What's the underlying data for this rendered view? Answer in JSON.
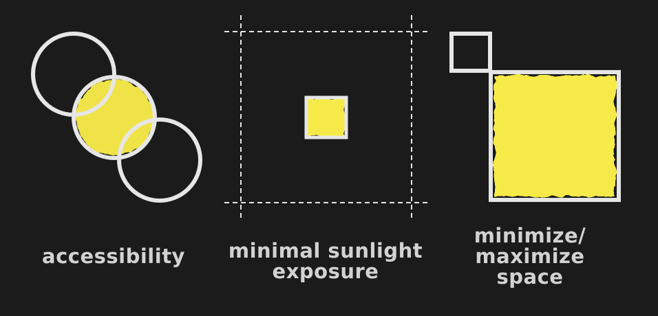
{
  "colors": {
    "background": "#1b1b1b",
    "stroke": "#e6e6e6",
    "highlight": "#f6ea4a",
    "caption": "#d2d2d2"
  },
  "panels": [
    {
      "icon": "overlapping-circles-icon",
      "caption_lines": [
        "accessibility"
      ]
    },
    {
      "icon": "small-square-in-dashed-frame-icon",
      "caption_lines": [
        "minimal sunlight",
        "exposure"
      ]
    },
    {
      "icon": "small-and-large-square-icon",
      "caption_lines": [
        "minimize/",
        "maximize",
        "space"
      ]
    }
  ]
}
